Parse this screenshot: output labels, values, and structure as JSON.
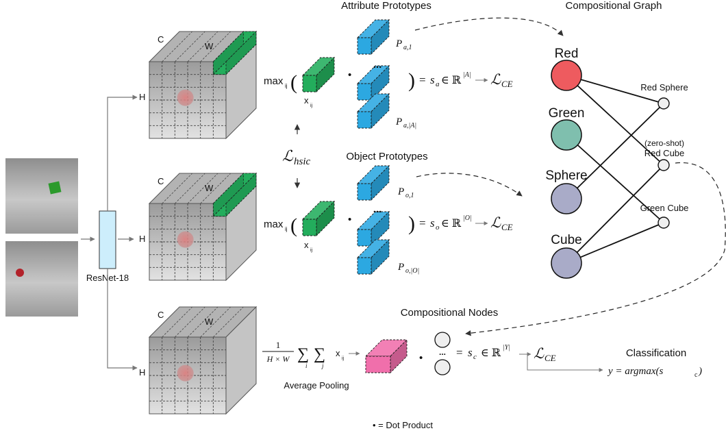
{
  "titles": {
    "attribute_prototypes": "Attribute Prototypes",
    "compositional_graph": "Compositional Graph",
    "object_prototypes": "Object Prototypes",
    "compositional_nodes": "Compositional Nodes",
    "classification": "Classification",
    "average_pooling": "Average Pooling"
  },
  "backbone": {
    "label": "ResNet-18"
  },
  "feature_map": {
    "c": "C",
    "w": "W",
    "h": "H"
  },
  "formula": {
    "max": "max",
    "ij": "ij",
    "x": "x",
    "dots": "...",
    "eq": "=",
    "sa": "s",
    "sa_sub": "a",
    "so": "s",
    "so_sub": "o",
    "sc": "s",
    "sc_sub": "c",
    "in_R": "∈ ℝ",
    "card_A": "|A|",
    "card_O": "|O|",
    "card_Y": "|Y|",
    "L": "ℒ",
    "CE": "CE",
    "hsic": "hsic",
    "pa1": "P",
    "pa1_sub": "a,1",
    "paA_sub": "a,|A|",
    "po1_sub": "o,1",
    "poO_sub": "o,|O|",
    "frac_num": "1",
    "frac_den": "H × W",
    "sum": "∑",
    "i": "i",
    "j": "j",
    "y_eq": "y = argmax(s",
    "y_close": ")",
    "y_sub": "c"
  },
  "graph": {
    "left_nodes": [
      {
        "label": "Red",
        "color": "#ee5b5f"
      },
      {
        "label": "Green",
        "color": "#7fbfae"
      },
      {
        "label": "Sphere",
        "color": "#a9abc8"
      },
      {
        "label": "Cube",
        "color": "#a9abc8"
      }
    ],
    "right_nodes": [
      {
        "label": "Red Sphere"
      },
      {
        "label": "(zero-shot)",
        "label2": "Red Cube"
      },
      {
        "label": "Green Cube"
      }
    ]
  },
  "legend": {
    "dot_product": "• = Dot Product"
  },
  "colors": {
    "green": "#23ad5c",
    "blue": "#2ca8e1",
    "pink": "#f06fab",
    "backbone": "#cdeefc"
  }
}
